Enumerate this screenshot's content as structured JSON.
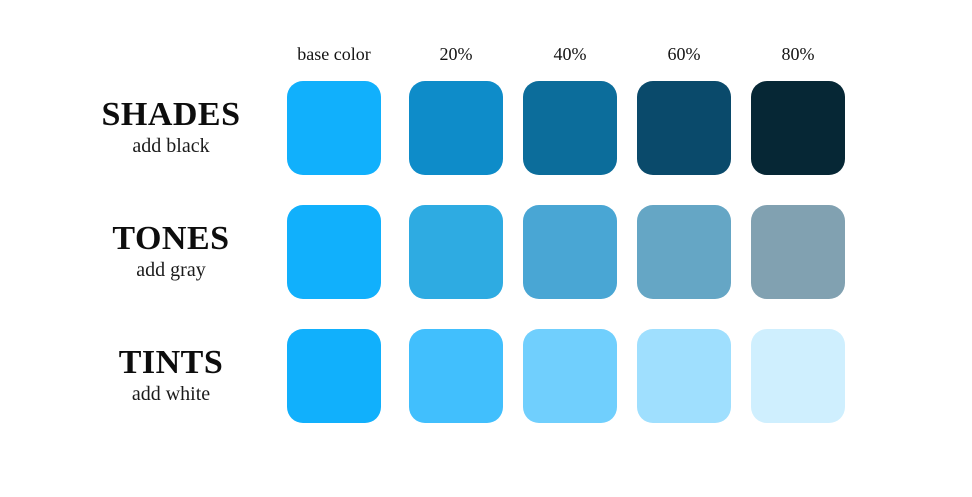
{
  "page": {
    "background": "#ffffff",
    "description": "Shades, tones and tints color mixing diagram for a blue base color"
  },
  "columns": [
    {
      "label": "base color"
    },
    {
      "label": "20%"
    },
    {
      "label": "40%"
    },
    {
      "label": "60%"
    },
    {
      "label": "80%"
    }
  ],
  "base_color": "#11B0FC",
  "rows": [
    {
      "title": "SHADES",
      "subtitle": "add black",
      "swatches": [
        "#11B0FC",
        "#0E8CC9",
        "#0C6D9B",
        "#0A4A6B",
        "#062735"
      ]
    },
    {
      "title": "TONES",
      "subtitle": "add gray",
      "swatches": [
        "#11B0FC",
        "#2EABE2",
        "#49A6D4",
        "#65A6C5",
        "#81A1B1"
      ]
    },
    {
      "title": "TINTS",
      "subtitle": "add white",
      "swatches": [
        "#11B0FC",
        "#41BFFD",
        "#70CFFD",
        "#9FDFFE",
        "#CFEFFE"
      ]
    }
  ]
}
